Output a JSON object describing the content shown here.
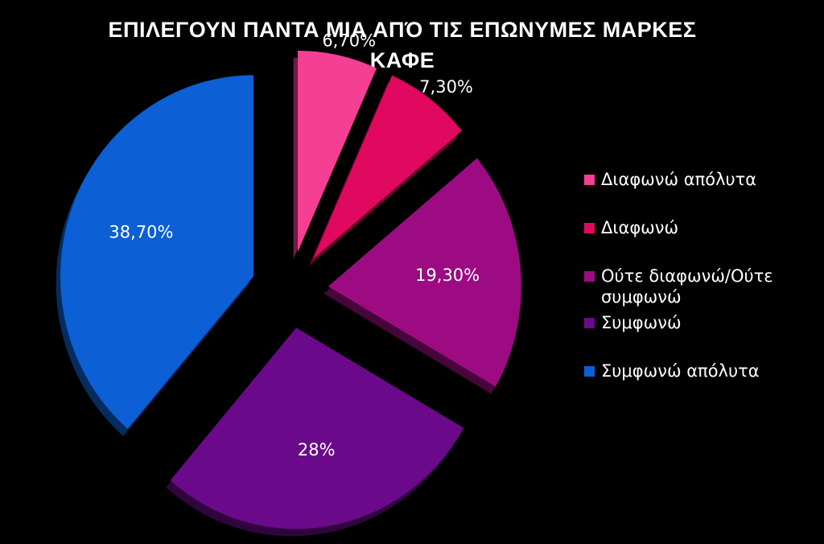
{
  "chart_data": {
    "type": "pie",
    "exploded": true,
    "title": [
      "ΕΠΙΛΕΓΟΥΝ ΠΑΝΤΑ ΜΙΑ ΑΠΌ ΤΙΣ ΕΠΩΝΥΜΕΣ ΜΑΡΚΕΣ",
      "ΚΑΦΕ"
    ],
    "legend_position": "right",
    "slices": [
      {
        "name": "Διαφωνώ απόλυτα",
        "value": 6.7,
        "label": "6,70%",
        "color": "#f43f93"
      },
      {
        "name": "Διαφωνώ",
        "value": 7.3,
        "label": "7,30%",
        "color": "#e0085f"
      },
      {
        "name": "Ούτε διαφωνώ/Ούτε συμφωνώ",
        "value": 19.3,
        "label": "19,30%",
        "color": "#9c0b82"
      },
      {
        "name": "Συμφωνώ",
        "value": 28,
        "label": "28%",
        "color": "#6a0a8a"
      },
      {
        "name": "Συμφωνώ απόλυτα",
        "value": 38.7,
        "label": "38,70%",
        "color": "#0c5fd4"
      }
    ]
  }
}
